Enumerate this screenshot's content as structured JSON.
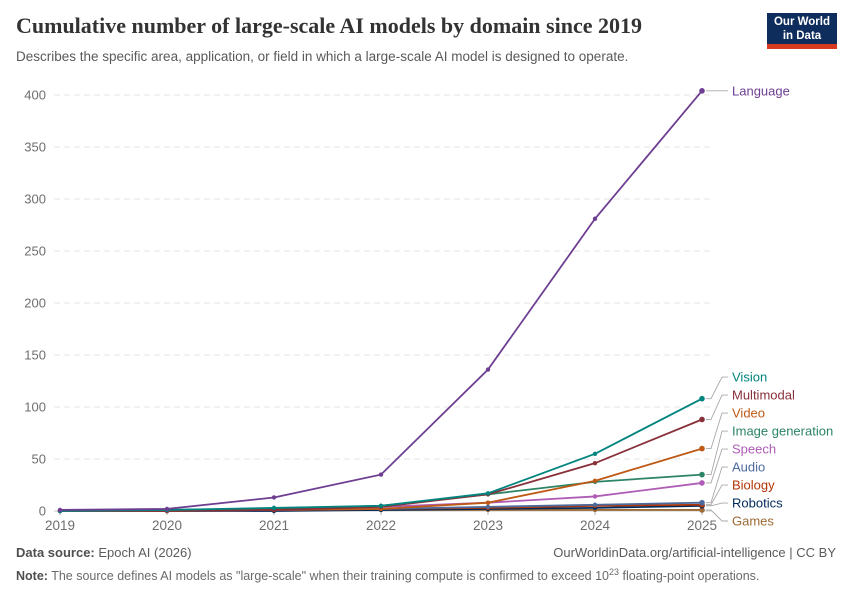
{
  "header": {
    "title": "Cumulative number of large-scale AI models by domain since 2019",
    "subtitle": "Describes the specific area, application, or field in which a large-scale AI model is designed to operate.",
    "logo": {
      "line1": "Our World",
      "line2": "in Data",
      "bg_color": "#0F2D5C",
      "accent_color": "#D63B1F"
    }
  },
  "chart_data": {
    "type": "line",
    "title": "Cumulative number of large-scale AI models by domain since 2019",
    "xlabel": "",
    "ylabel": "",
    "x": [
      2019,
      2020,
      2021,
      2022,
      2023,
      2024,
      2025
    ],
    "ylim": [
      0,
      400
    ],
    "yticks": [
      0,
      50,
      100,
      150,
      200,
      250,
      300,
      350,
      400
    ],
    "grid": "horizontal-dashed",
    "legend_position": "right-end-labels",
    "series": [
      {
        "name": "Language",
        "color": "#6D3E91",
        "values": [
          1,
          2,
          13,
          35,
          136,
          281,
          404
        ]
      },
      {
        "name": "Vision",
        "color": "#00847E",
        "values": [
          0,
          1,
          3,
          5,
          17,
          55,
          108
        ]
      },
      {
        "name": "Multimodal",
        "color": "#883039",
        "values": [
          0,
          0,
          1,
          4,
          16,
          46,
          88
        ]
      },
      {
        "name": "Video",
        "color": "#BE5915",
        "values": [
          0,
          0,
          1,
          2,
          8,
          29,
          60
        ]
      },
      {
        "name": "Image generation",
        "color": "#2C8465",
        "values": [
          0,
          1,
          2,
          5,
          16,
          28,
          35
        ]
      },
      {
        "name": "Speech",
        "color": "#AE5CB5",
        "values": [
          0,
          1,
          2,
          4,
          8,
          14,
          27
        ]
      },
      {
        "name": "Audio",
        "color": "#4C6A9C",
        "values": [
          0,
          0,
          1,
          2,
          4,
          6,
          8
        ]
      },
      {
        "name": "Biology",
        "color": "#B13507",
        "values": [
          0,
          1,
          1,
          2,
          3,
          5,
          6
        ]
      },
      {
        "name": "Robotics",
        "color": "#00295B",
        "values": [
          0,
          0,
          0,
          1,
          2,
          3,
          5
        ]
      },
      {
        "name": "Games",
        "color": "#9D6A35",
        "values": [
          0,
          0,
          1,
          1,
          1,
          1,
          1
        ]
      }
    ]
  },
  "footer": {
    "source_label": "Data source:",
    "source_value": " Epoch AI (2026)",
    "attribution": "OurWorldinData.org/artificial-intelligence | CC BY",
    "note_label": "Note:",
    "note_text1": " The source defines AI models as \"large-scale\" when their training compute is confirmed to exceed 10",
    "note_sup": "23",
    "note_text2": " floating-point operations."
  }
}
